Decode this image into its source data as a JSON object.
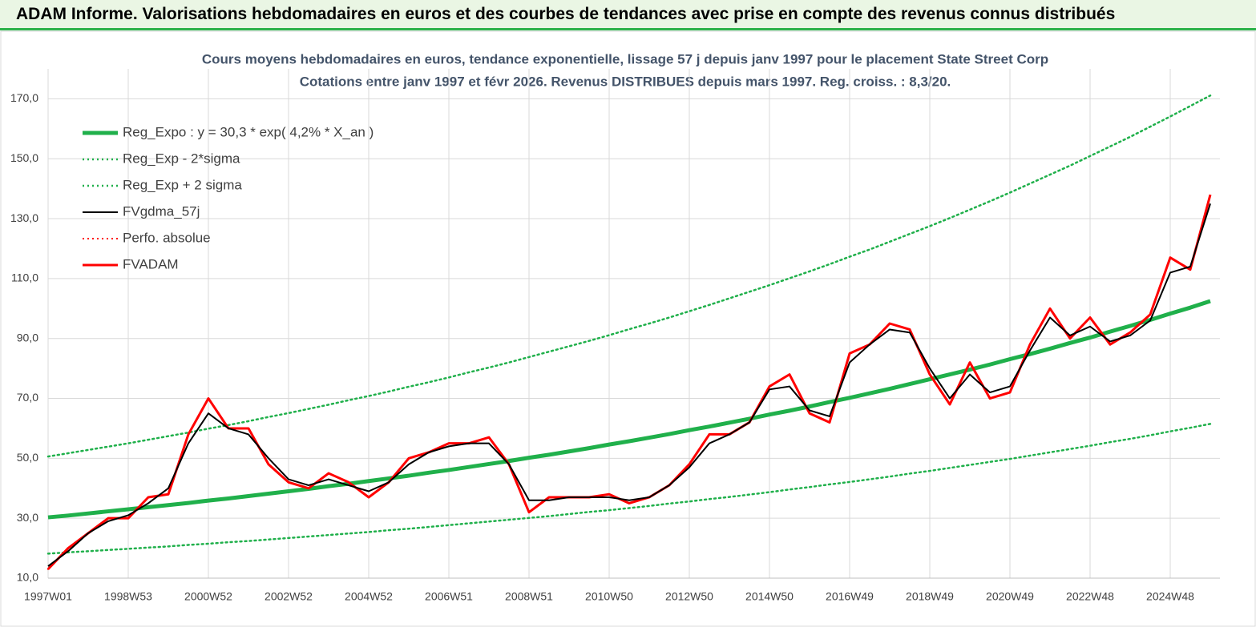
{
  "header": {
    "title": "ADAM Informe. Valorisations hebdomadaires en euros et des courbes de tendances avec prise en compte des revenus connus distribués"
  },
  "chart_data": {
    "type": "line",
    "title": "Cours moyens hebdomadaires en euros, tendance exponentielle, lissage 57 j depuis janv 1997 pour le placement State Street Corp",
    "subtitle": "Cotations entre janv 1997 et févr 2026. Revenus DISTRIBUES depuis mars 1997. Reg. croiss. : 8,3/20.",
    "x": [
      1997,
      1997.5,
      1998,
      1998.5,
      1999,
      1999.5,
      2000,
      2000.5,
      2001,
      2001.5,
      2002,
      2002.5,
      2003,
      2003.5,
      2004,
      2004.5,
      2005,
      2005.5,
      2006,
      2006.5,
      2007,
      2007.5,
      2008,
      2008.5,
      2009,
      2009.5,
      2010,
      2010.5,
      2011,
      2011.5,
      2012,
      2012.5,
      2013,
      2013.5,
      2014,
      2014.5,
      2015,
      2015.5,
      2016,
      2016.5,
      2017,
      2017.5,
      2018,
      2018.5,
      2019,
      2019.5,
      2020,
      2020.5,
      2021,
      2021.5,
      2022,
      2022.5,
      2023,
      2023.5,
      2024,
      2024.5,
      2025,
      2025.5,
      2026
    ],
    "xlim": [
      1997,
      2026.24
    ],
    "xticks": [
      {
        "value": 1997,
        "label": "1997W01"
      },
      {
        "value": 1999,
        "label": "1998W53"
      },
      {
        "value": 2001,
        "label": "2000W52"
      },
      {
        "value": 2003,
        "label": "2002W52"
      },
      {
        "value": 2005,
        "label": "2004W52"
      },
      {
        "value": 2007,
        "label": "2006W51"
      },
      {
        "value": 2009,
        "label": "2008W51"
      },
      {
        "value": 2011,
        "label": "2010W50"
      },
      {
        "value": 2013,
        "label": "2012W50"
      },
      {
        "value": 2015,
        "label": "2014W50"
      },
      {
        "value": 2017,
        "label": "2016W49"
      },
      {
        "value": 2019,
        "label": "2018W49"
      },
      {
        "value": 2021,
        "label": "2020W49"
      },
      {
        "value": 2023,
        "label": "2022W48"
      },
      {
        "value": 2025,
        "label": "2024W48"
      }
    ],
    "ylim": [
      10,
      180
    ],
    "yticks": [
      {
        "value": 10,
        "label": "10,0"
      },
      {
        "value": 30,
        "label": "30,0"
      },
      {
        "value": 50,
        "label": "50,0"
      },
      {
        "value": 70,
        "label": "70,0"
      },
      {
        "value": 90,
        "label": "90,0"
      },
      {
        "value": 110,
        "label": "110,0"
      },
      {
        "value": 130,
        "label": "130,0"
      },
      {
        "value": 150,
        "label": "150,0"
      },
      {
        "value": 170,
        "label": "170,0"
      }
    ],
    "grid": true,
    "legend": "upper left",
    "series": [
      {
        "name": "Reg_Expo : y = 30,3 * exp( 4,2% *  X_an )",
        "color": "#20b04b",
        "style": "solid",
        "width": 5,
        "values": [
          30.3,
          30.9,
          31.6,
          32.3,
          33.0,
          33.7,
          34.4,
          35.1,
          35.9,
          36.6,
          37.4,
          38.2,
          39.0,
          39.8,
          40.7,
          41.5,
          42.4,
          43.3,
          44.2,
          45.2,
          46.1,
          47.1,
          48.1,
          49.1,
          50.2,
          51.2,
          52.3,
          53.4,
          54.6,
          55.7,
          56.9,
          58.1,
          59.4,
          60.6,
          61.9,
          63.2,
          64.6,
          65.9,
          67.3,
          68.8,
          70.2,
          71.7,
          73.2,
          74.8,
          76.4,
          78.0,
          79.6,
          81.3,
          83.1,
          84.8,
          86.6,
          88.5,
          90.3,
          92.3,
          94.2,
          96.2,
          98.3,
          100.3,
          102.5
        ]
      },
      {
        "name": "Reg_Exp - 2*sigma",
        "color": "#20b04b",
        "style": "dotted",
        "width": 2.5,
        "values": [
          18.2,
          18.6,
          19.0,
          19.4,
          19.8,
          20.2,
          20.6,
          21.1,
          21.5,
          22.0,
          22.4,
          22.9,
          23.4,
          23.9,
          24.4,
          24.9,
          25.4,
          26.0,
          26.5,
          27.1,
          27.7,
          28.3,
          28.9,
          29.5,
          30.1,
          30.7,
          31.4,
          32.1,
          32.7,
          33.4,
          34.1,
          34.9,
          35.6,
          36.4,
          37.1,
          37.9,
          38.7,
          39.6,
          40.4,
          41.3,
          42.1,
          43.0,
          43.9,
          44.9,
          45.8,
          46.8,
          47.8,
          48.8,
          49.8,
          50.9,
          52.0,
          53.1,
          54.2,
          55.4,
          56.5,
          57.7,
          59.0,
          60.2,
          61.5
        ]
      },
      {
        "name": "Reg_Exp + 2 sigma",
        "color": "#20b04b",
        "style": "dotted",
        "width": 2.5,
        "values": [
          50.6,
          51.7,
          52.8,
          53.9,
          55.0,
          56.2,
          57.4,
          58.6,
          59.9,
          61.1,
          62.4,
          63.8,
          65.1,
          66.5,
          67.9,
          69.4,
          70.8,
          72.3,
          73.9,
          75.4,
          77.0,
          78.7,
          80.3,
          82.0,
          83.8,
          85.6,
          87.4,
          89.2,
          91.1,
          93.1,
          95.0,
          97.0,
          99.1,
          101.2,
          103.4,
          105.6,
          107.8,
          110.1,
          112.4,
          114.8,
          117.3,
          119.7,
          122.3,
          124.9,
          127.5,
          130.2,
          133.0,
          135.8,
          138.7,
          141.7,
          144.7,
          147.7,
          150.9,
          154.1,
          157.3,
          160.7,
          164.1,
          167.6,
          171.1
        ]
      },
      {
        "name": "FVgdma_57j",
        "color": "#000000",
        "style": "solid",
        "width": 2,
        "values": [
          14,
          19,
          25,
          29,
          31,
          35,
          40,
          55,
          65,
          60,
          58,
          50,
          43,
          41,
          43,
          41,
          39,
          42,
          48,
          52,
          54,
          55,
          55,
          48,
          36,
          36,
          37,
          37,
          37,
          36,
          37,
          41,
          47,
          55,
          58,
          62,
          73,
          74,
          66,
          64,
          82,
          88,
          93,
          92,
          80,
          70,
          78,
          72,
          74,
          86,
          97,
          91,
          94,
          89,
          91,
          96,
          112,
          114,
          135
        ]
      },
      {
        "name": "Perfo. absolue",
        "color": "#ff0000",
        "style": "dotted",
        "width": 2,
        "values": [
          13,
          20,
          25,
          30,
          30,
          37,
          38,
          58,
          70,
          60,
          60,
          48,
          42,
          40,
          45,
          42,
          37,
          42,
          50,
          52,
          55,
          55,
          57,
          48,
          32,
          37,
          37,
          37,
          38,
          35,
          37,
          41,
          48,
          58,
          58,
          62,
          74,
          78,
          65,
          62,
          85,
          88,
          95,
          93,
          78,
          68,
          82,
          70,
          72,
          88,
          100,
          90,
          97,
          88,
          92,
          98,
          117,
          113,
          138
        ]
      },
      {
        "name": "FVADAM",
        "color": "#ff0000",
        "style": "solid",
        "width": 3,
        "values": [
          13,
          20,
          25,
          30,
          30,
          37,
          38,
          58,
          70,
          60,
          60,
          48,
          42,
          40,
          45,
          42,
          37,
          42,
          50,
          52,
          55,
          55,
          57,
          48,
          32,
          37,
          37,
          37,
          38,
          35,
          37,
          41,
          48,
          58,
          58,
          62,
          74,
          78,
          65,
          62,
          85,
          88,
          95,
          93,
          78,
          68,
          82,
          70,
          72,
          88,
          100,
          90,
          97,
          88,
          92,
          98,
          117,
          113,
          138
        ]
      }
    ]
  }
}
